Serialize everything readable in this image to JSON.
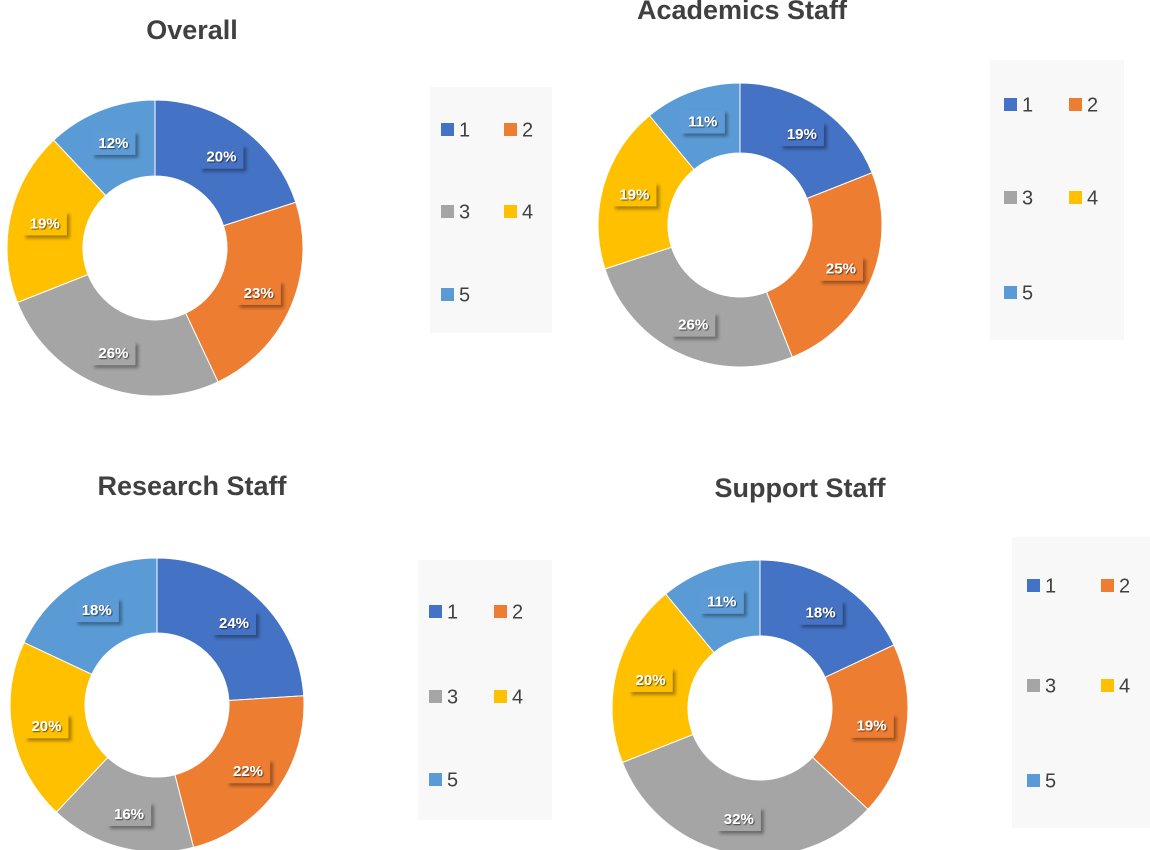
{
  "chart_data": [
    {
      "type": "donut",
      "title": "Overall",
      "categories": [
        "1",
        "2",
        "3",
        "4",
        "5"
      ],
      "values": [
        20,
        23,
        26,
        19,
        12
      ],
      "value_labels": [
        "20%",
        "23%",
        "26%",
        "19%",
        "12%"
      ],
      "colors": [
        "#4472c4",
        "#ed7d31",
        "#a5a5a5",
        "#ffc000",
        "#5b9bd5"
      ]
    },
    {
      "type": "donut",
      "title": "Academics Staff",
      "categories": [
        "1",
        "2",
        "3",
        "4",
        "5"
      ],
      "values": [
        19,
        25,
        26,
        19,
        11
      ],
      "value_labels": [
        "19%",
        "25%",
        "26%",
        "19%",
        "11%"
      ],
      "colors": [
        "#4472c4",
        "#ed7d31",
        "#a5a5a5",
        "#ffc000",
        "#5b9bd5"
      ]
    },
    {
      "type": "donut",
      "title": "Research Staff",
      "categories": [
        "1",
        "2",
        "3",
        "4",
        "5"
      ],
      "values": [
        24,
        22,
        16,
        20,
        18
      ],
      "value_labels": [
        "24%",
        "22%",
        "16%",
        "20%",
        "18%"
      ],
      "colors": [
        "#4472c4",
        "#ed7d31",
        "#a5a5a5",
        "#ffc000",
        "#5b9bd5"
      ]
    },
    {
      "type": "donut",
      "title": "Support Staff",
      "categories": [
        "1",
        "2",
        "3",
        "4",
        "5"
      ],
      "values": [
        18,
        19,
        32,
        20,
        11
      ],
      "value_labels": [
        "18%",
        "19%",
        "32%",
        "20%",
        "11%"
      ],
      "colors": [
        "#4472c4",
        "#ed7d31",
        "#a5a5a5",
        "#ffc000",
        "#5b9bd5"
      ]
    }
  ]
}
